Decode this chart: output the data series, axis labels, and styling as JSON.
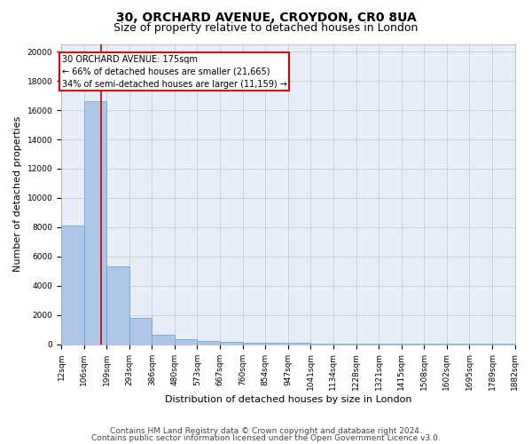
{
  "title1": "30, ORCHARD AVENUE, CROYDON, CR0 8UA",
  "title2": "Size of property relative to detached houses in London",
  "xlabel": "Distribution of detached houses by size in London",
  "ylabel": "Number of detached properties",
  "footer1": "Contains HM Land Registry data © Crown copyright and database right 2024.",
  "footer2": "Contains public sector information licensed under the Open Government Licence v3.0.",
  "bin_edges": [
    12,
    106,
    199,
    293,
    386,
    480,
    573,
    667,
    760,
    854,
    947,
    1041,
    1134,
    1228,
    1321,
    1415,
    1508,
    1602,
    1695,
    1789,
    1882
  ],
  "bin_labels": [
    "12sqm",
    "106sqm",
    "199sqm",
    "293sqm",
    "386sqm",
    "480sqm",
    "573sqm",
    "667sqm",
    "760sqm",
    "854sqm",
    "947sqm",
    "1041sqm",
    "1134sqm",
    "1228sqm",
    "1321sqm",
    "1415sqm",
    "1508sqm",
    "1602sqm",
    "1695sqm",
    "1789sqm",
    "1882sqm"
  ],
  "bar_heights": [
    8100,
    16600,
    5300,
    1800,
    650,
    350,
    200,
    130,
    100,
    85,
    70,
    60,
    50,
    45,
    40,
    35,
    30,
    25,
    20,
    15
  ],
  "bar_color": "#aec6e8",
  "bar_edge_color": "#5a9fd4",
  "property_size": 175,
  "vline_color": "#cc0000",
  "annotation_text": "30 ORCHARD AVENUE: 175sqm\n← 66% of detached houses are smaller (21,665)\n34% of semi-detached houses are larger (11,159) →",
  "annotation_box_color": "#cc0000",
  "ylim": [
    0,
    20500
  ],
  "yticks": [
    0,
    2000,
    4000,
    6000,
    8000,
    10000,
    12000,
    14000,
    16000,
    18000,
    20000
  ],
  "grid_color": "#cccccc",
  "bg_color": "#e8eef8",
  "title1_fontsize": 10,
  "title2_fontsize": 9,
  "axis_label_fontsize": 8,
  "tick_fontsize": 6.5,
  "footer_fontsize": 6.5
}
